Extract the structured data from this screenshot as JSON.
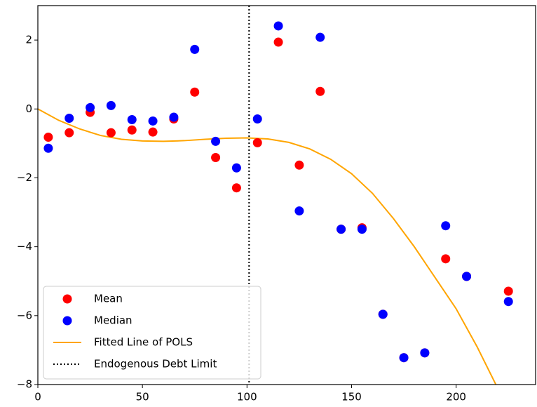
{
  "chart_data": {
    "type": "scatter",
    "x": [
      5,
      15,
      25,
      35,
      45,
      55,
      65,
      75,
      85,
      95,
      105,
      115,
      125,
      135,
      145,
      155,
      165,
      175,
      185,
      195,
      205,
      225
    ],
    "series": [
      {
        "name": "Mean",
        "color": "red",
        "values": [
          -0.82,
          -0.69,
          -0.1,
          -0.69,
          -0.61,
          -0.67,
          -0.29,
          0.49,
          -1.41,
          -2.29,
          -0.98,
          1.94,
          -1.63,
          0.51,
          -3.49,
          -3.45,
          -5.96,
          -7.22,
          -7.08,
          -4.35,
          -4.86,
          -5.29
        ]
      },
      {
        "name": "Median",
        "color": "blue",
        "values": [
          -1.14,
          -0.27,
          0.04,
          0.1,
          -0.31,
          -0.35,
          -0.24,
          1.73,
          -0.94,
          -1.71,
          -0.29,
          2.41,
          -2.96,
          2.08,
          -3.49,
          -3.49,
          -5.96,
          -7.22,
          -7.08,
          -3.39,
          -4.86,
          -5.59
        ]
      }
    ],
    "fit": {
      "name": "Fitted Line of POLS",
      "color": "orange",
      "x": [
        0,
        10,
        20,
        30,
        40,
        50,
        60,
        70,
        80,
        90,
        100,
        110,
        120,
        130,
        140,
        150,
        160,
        170,
        180,
        190,
        200,
        210,
        219
      ],
      "values": [
        0,
        -0.33,
        -0.58,
        -0.77,
        -0.88,
        -0.93,
        -0.94,
        -0.92,
        -0.88,
        -0.85,
        -0.84,
        -0.87,
        -0.97,
        -1.16,
        -1.46,
        -1.88,
        -2.45,
        -3.18,
        -4.0,
        -4.9,
        -5.8,
        -6.9,
        -8.0
      ]
    },
    "vline": {
      "name": "Endogenous Debt Limit",
      "x": 101,
      "color": "black"
    },
    "xlim": [
      0,
      238
    ],
    "ylim": [
      -8,
      3
    ],
    "xticks": [
      0,
      50,
      100,
      150,
      200
    ],
    "yticks": [
      2,
      0,
      {
        "value": -2,
        "label": "−2"
      },
      {
        "value": -4,
        "label": "−4"
      },
      {
        "value": -6,
        "label": "−6"
      },
      {
        "value": -8,
        "label": "−8"
      }
    ],
    "legend": "lower left"
  }
}
